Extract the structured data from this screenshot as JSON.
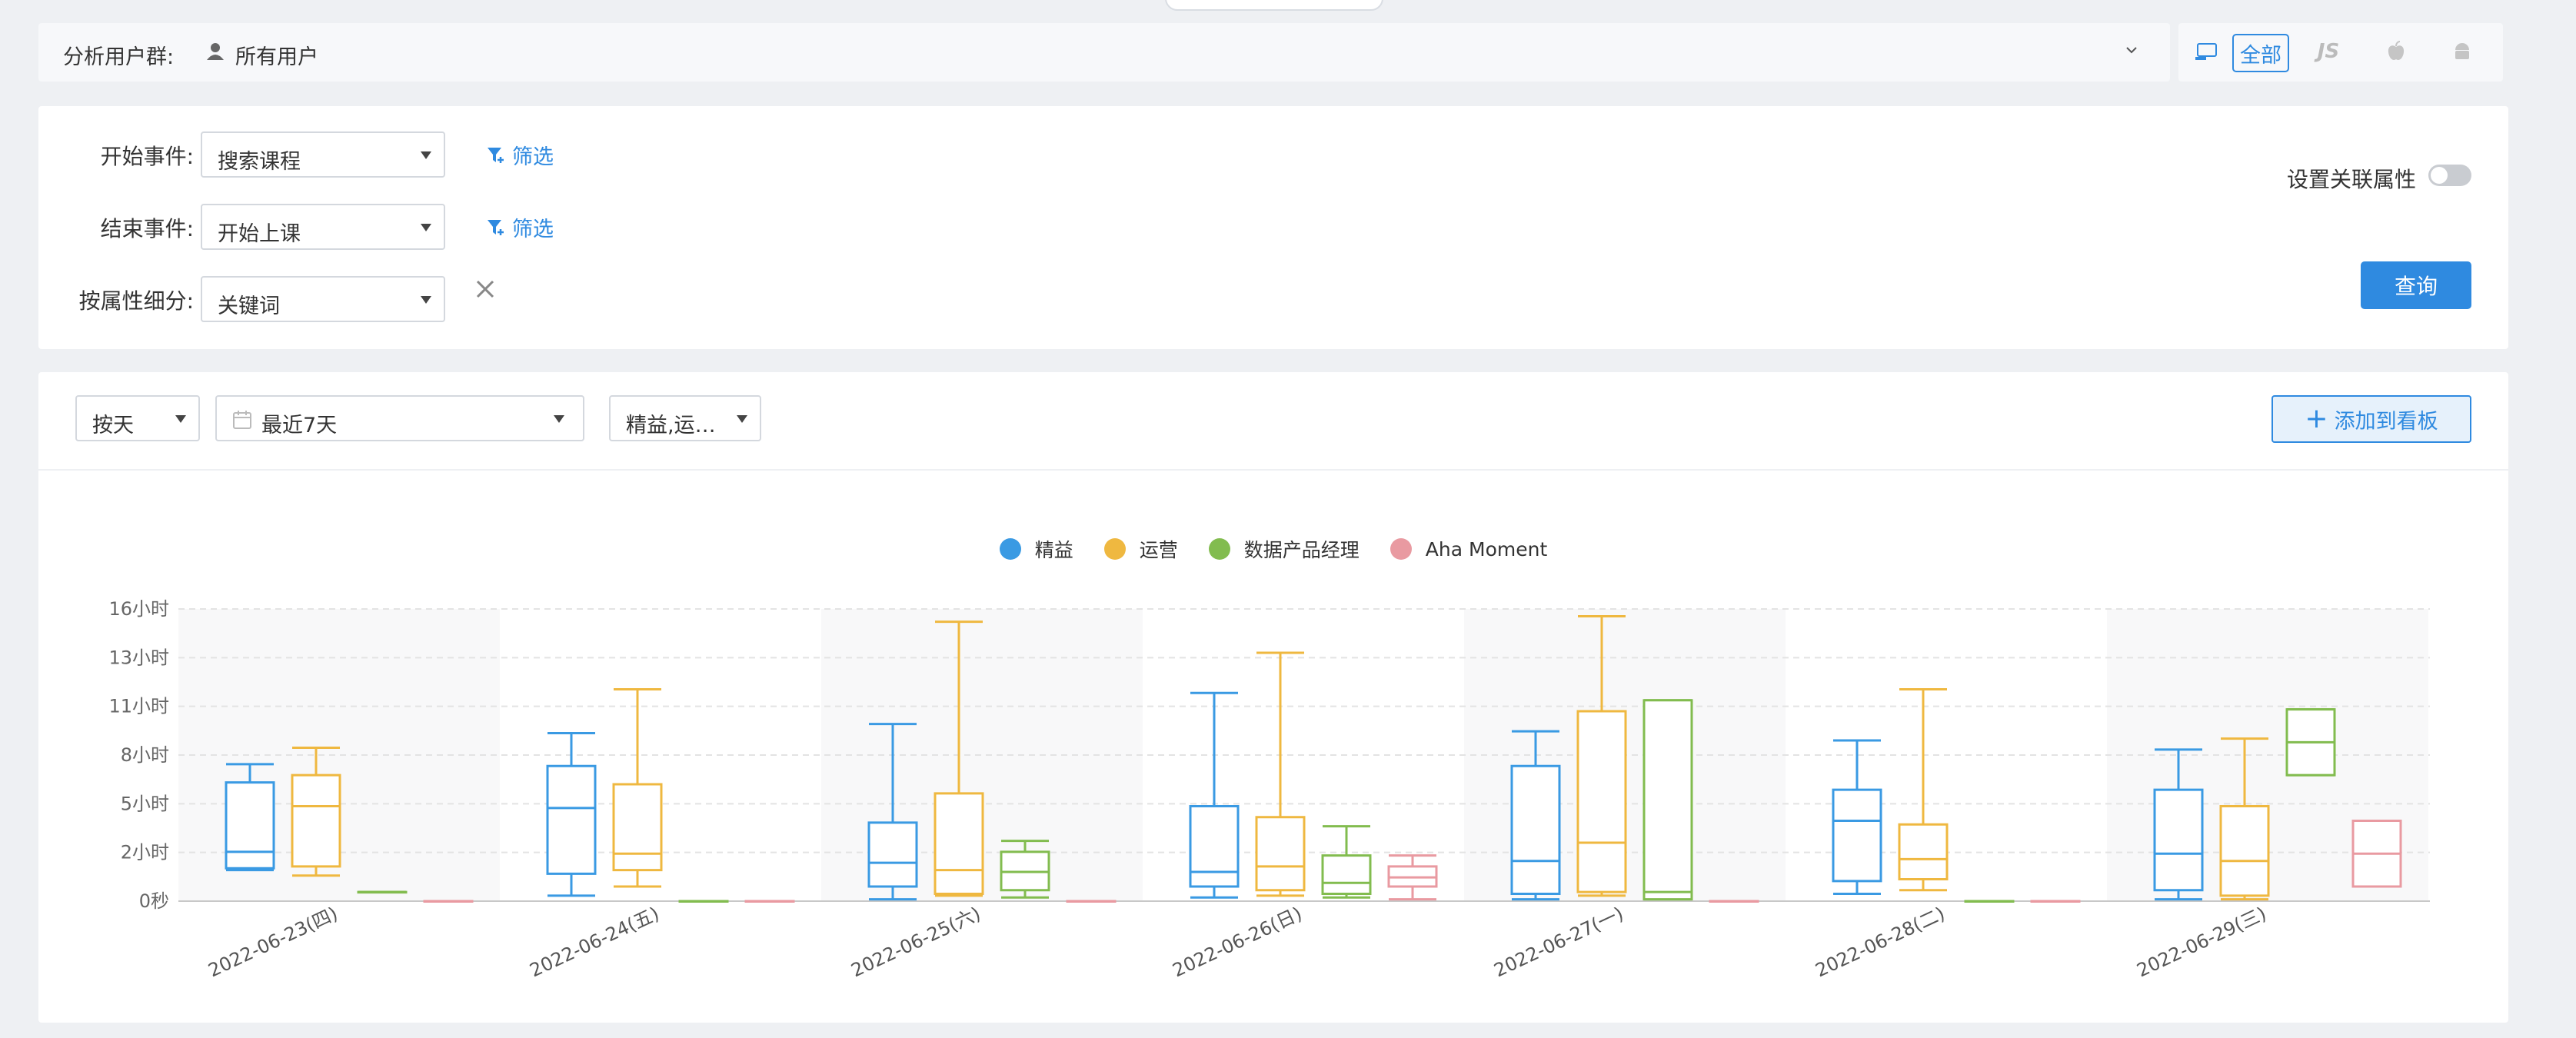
{
  "user_group": {
    "label": "分析用户群:",
    "value": "所有用户"
  },
  "platform": {
    "all_label": "全部",
    "js_label": "JS"
  },
  "filters": {
    "start_label": "开始事件:",
    "start_value": "搜索课程",
    "end_label": "结束事件:",
    "end_value": "开始上课",
    "breakdown_label": "按属性细分:",
    "breakdown_value": "关键词",
    "filter_link": "筛选",
    "assoc_label": "设置关联属性",
    "query_label": "查询"
  },
  "toolbar": {
    "granularity": "按天",
    "range": "最近7天",
    "segments": "精益,运…",
    "add_label": "添加到看板"
  },
  "colors": {
    "accent": "#2f8ae0",
    "series": [
      "#3a9ae3",
      "#efb840",
      "#82bc4f",
      "#e99aa1"
    ]
  },
  "chart_data": {
    "type": "boxplot",
    "y_unit": "小时",
    "y_ticks": [
      "0秒",
      "2小时",
      "5小时",
      "8小时",
      "11小时",
      "13小时",
      "16小时"
    ],
    "y_tick_values": [
      0,
      2.67,
      5.33,
      8,
      10.67,
      13.33,
      16
    ],
    "ylim": [
      0,
      16
    ],
    "categories": [
      "2022-06-23(四)",
      "2022-06-24(五)",
      "2022-06-25(六)",
      "2022-06-26(日)",
      "2022-06-27(一)",
      "2022-06-28(二)",
      "2022-06-29(三)"
    ],
    "series": [
      {
        "name": "精益",
        "boxes": [
          [
            1.7,
            1.8,
            2.7,
            6.5,
            7.5
          ],
          [
            0.3,
            1.5,
            5.1,
            7.4,
            9.2
          ],
          [
            0.1,
            0.8,
            2.1,
            4.3,
            9.7
          ],
          [
            0.2,
            0.8,
            1.6,
            5.2,
            11.4
          ],
          [
            0.1,
            0.4,
            2.2,
            7.4,
            9.3
          ],
          [
            0.4,
            1.1,
            4.4,
            6.1,
            8.8
          ],
          [
            0.1,
            0.6,
            2.6,
            6.1,
            8.3
          ]
        ]
      },
      {
        "name": "运营",
        "boxes": [
          [
            1.4,
            1.9,
            5.2,
            6.9,
            8.4
          ],
          [
            0.8,
            1.7,
            2.6,
            6.4,
            11.6
          ],
          [
            0.3,
            0.4,
            1.7,
            5.9,
            15.3
          ],
          [
            0.3,
            0.6,
            1.9,
            4.6,
            13.6
          ],
          [
            0.3,
            0.5,
            3.2,
            10.4,
            15.6
          ],
          [
            0.6,
            1.2,
            2.3,
            4.2,
            11.6
          ],
          [
            0.1,
            0.3,
            2.2,
            5.2,
            8.9
          ]
        ]
      },
      {
        "name": "数据产品经理",
        "boxes": [
          [
            0.5,
            0.5,
            0.5,
            0.5,
            0.5
          ],
          [
            0.0,
            0.0,
            0.0,
            0.0,
            0.0
          ],
          [
            0.2,
            0.6,
            1.6,
            2.7,
            3.3
          ],
          [
            0.2,
            0.4,
            1.0,
            2.5,
            4.1
          ],
          [
            0.1,
            0.1,
            0.5,
            11.0,
            11.0
          ],
          [
            0.0,
            0.0,
            0.0,
            0.0,
            0.0
          ],
          [
            6.9,
            6.9,
            8.7,
            10.5,
            10.5
          ]
        ]
      },
      {
        "name": "Aha Moment",
        "boxes": [
          [
            0.0,
            0.0,
            0.0,
            0.0,
            0.0
          ],
          [
            0.0,
            0.0,
            0.0,
            0.0,
            0.0
          ],
          [
            0.0,
            0.0,
            0.0,
            0.0,
            0.0
          ],
          [
            0.1,
            0.8,
            1.3,
            1.9,
            2.5
          ],
          [
            0.0,
            0.0,
            0.0,
            0.0,
            0.0
          ],
          [
            0.0,
            0.0,
            0.0,
            0.0,
            0.0
          ],
          [
            0.8,
            0.8,
            2.6,
            4.4,
            4.4
          ]
        ]
      }
    ],
    "grid": true,
    "legend_position": "top-center"
  }
}
